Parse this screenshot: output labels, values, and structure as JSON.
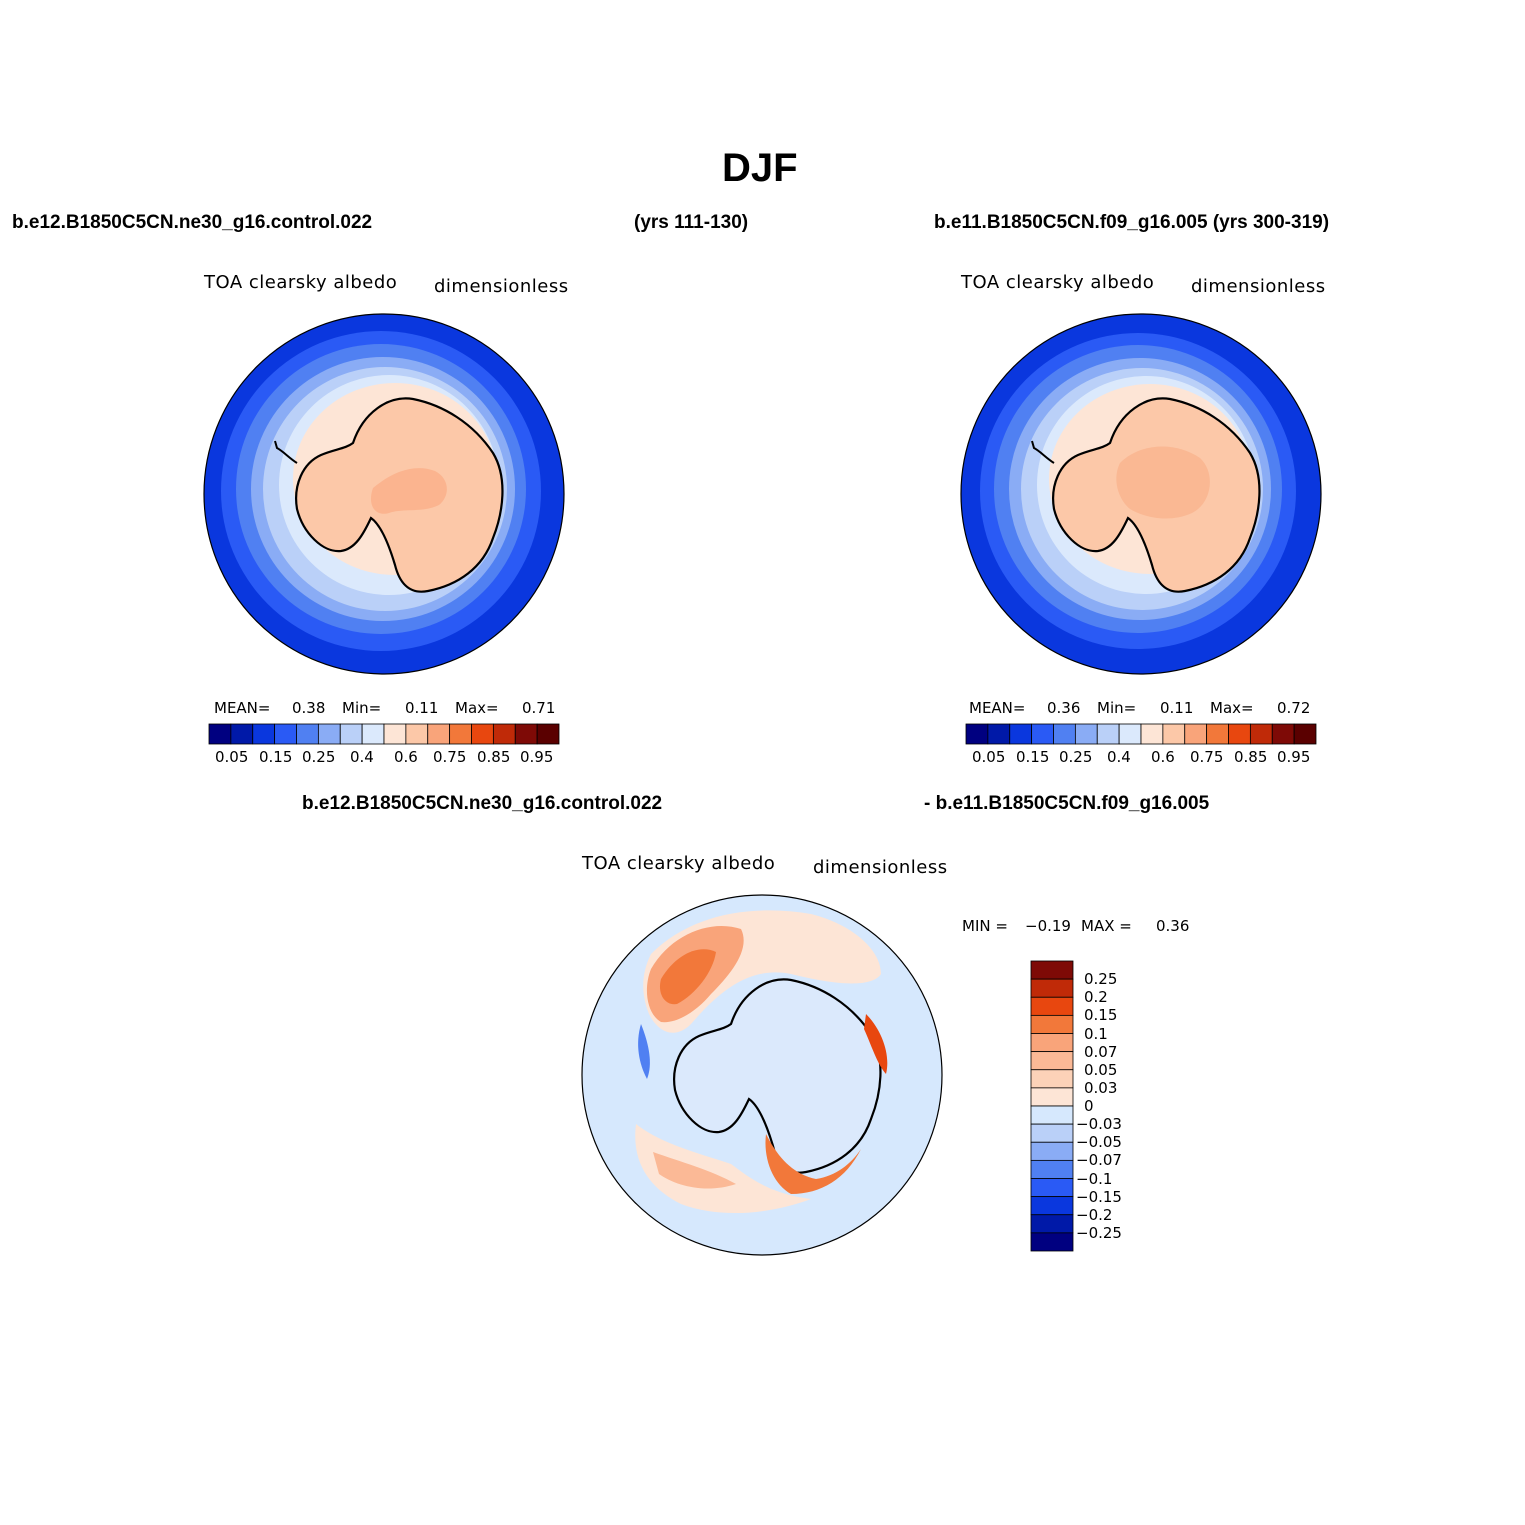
{
  "figure": {
    "title": "DJF",
    "top_left_run": "b.e12.B1850C5CN.ne30_g16.control.022",
    "top_left_years": "(yrs 111-130)",
    "top_right_run": "b.e11.B1850C5CN.f09_g16.005 (yrs 300-319)",
    "bottom_run_a": "b.e12.B1850C5CN.ne30_g16.control.022",
    "bottom_run_b": "- b.e11.B1850C5CN.f09_g16.005"
  },
  "colors": {
    "ocean": "#0a37de",
    "land": "#fcc8a8",
    "diff_bg": "#d6e8fd"
  },
  "chart_data": [
    {
      "type": "heatmap",
      "projection": "south-polar-stereographic",
      "variable": "TOA clearsky albedo",
      "units": "dimensionless",
      "mean_label": "MEAN=",
      "mean": "0.38",
      "min_label": "Min=",
      "min": "0.11",
      "max_label": "Max=",
      "max": "0.71",
      "levels": [
        "0.05",
        "0.15",
        "0.25",
        "0.4",
        "0.6",
        "0.75",
        "0.85",
        "0.95"
      ],
      "level_values": [
        0.05,
        0.1,
        0.15,
        0.2,
        0.25,
        0.3,
        0.4,
        0.5,
        0.6,
        0.7,
        0.75,
        0.8,
        0.85,
        0.9,
        0.95
      ],
      "colormap": [
        "#000080",
        "#0019a8",
        "#0a37de",
        "#2a5af5",
        "#5080f2",
        "#8aacf5",
        "#bad0f8",
        "#dbe9fc",
        "#fde5d6",
        "#fcc8a8",
        "#f9a47a",
        "#f2783a",
        "#e8470f",
        "#c02a08",
        "#7e0a06",
        "#5a0000"
      ]
    },
    {
      "type": "heatmap",
      "projection": "south-polar-stereographic",
      "variable": "TOA clearsky albedo",
      "units": "dimensionless",
      "mean_label": "MEAN=",
      "mean": "0.36",
      "min_label": "Min=",
      "min": "0.11",
      "max_label": "Max=",
      "max": "0.72",
      "levels": [
        "0.05",
        "0.15",
        "0.25",
        "0.4",
        "0.6",
        "0.75",
        "0.85",
        "0.95"
      ],
      "level_values": [
        0.05,
        0.1,
        0.15,
        0.2,
        0.25,
        0.3,
        0.4,
        0.5,
        0.6,
        0.7,
        0.75,
        0.8,
        0.85,
        0.9,
        0.95
      ],
      "colormap": [
        "#000080",
        "#0019a8",
        "#0a37de",
        "#2a5af5",
        "#5080f2",
        "#8aacf5",
        "#bad0f8",
        "#dbe9fc",
        "#fde5d6",
        "#fcc8a8",
        "#f9a47a",
        "#f2783a",
        "#e8470f",
        "#c02a08",
        "#7e0a06",
        "#5a0000"
      ]
    },
    {
      "type": "heatmap",
      "projection": "south-polar-stereographic",
      "variable": "TOA clearsky albedo",
      "units": "dimensionless",
      "min_label": "MIN =",
      "min": "−0.19",
      "max_label": "MAX =",
      "max": "0.36",
      "levels": [
        "0.25",
        "0.2",
        "0.15",
        "0.1",
        "0.07",
        "0.05",
        "0.03",
        "0",
        "−0.03",
        "−0.05",
        "−0.07",
        "−0.1",
        "−0.15",
        "−0.2",
        "−0.25"
      ],
      "colormap": [
        "#7e0a06",
        "#c02a08",
        "#e8470f",
        "#f2783a",
        "#f9a47a",
        "#fbb996",
        "#fcd2b8",
        "#fde5d6",
        "#d6e8fd",
        "#bad0f8",
        "#8aacf5",
        "#5080f2",
        "#2a5af5",
        "#0a37de",
        "#0019a8",
        "#000080"
      ]
    }
  ]
}
